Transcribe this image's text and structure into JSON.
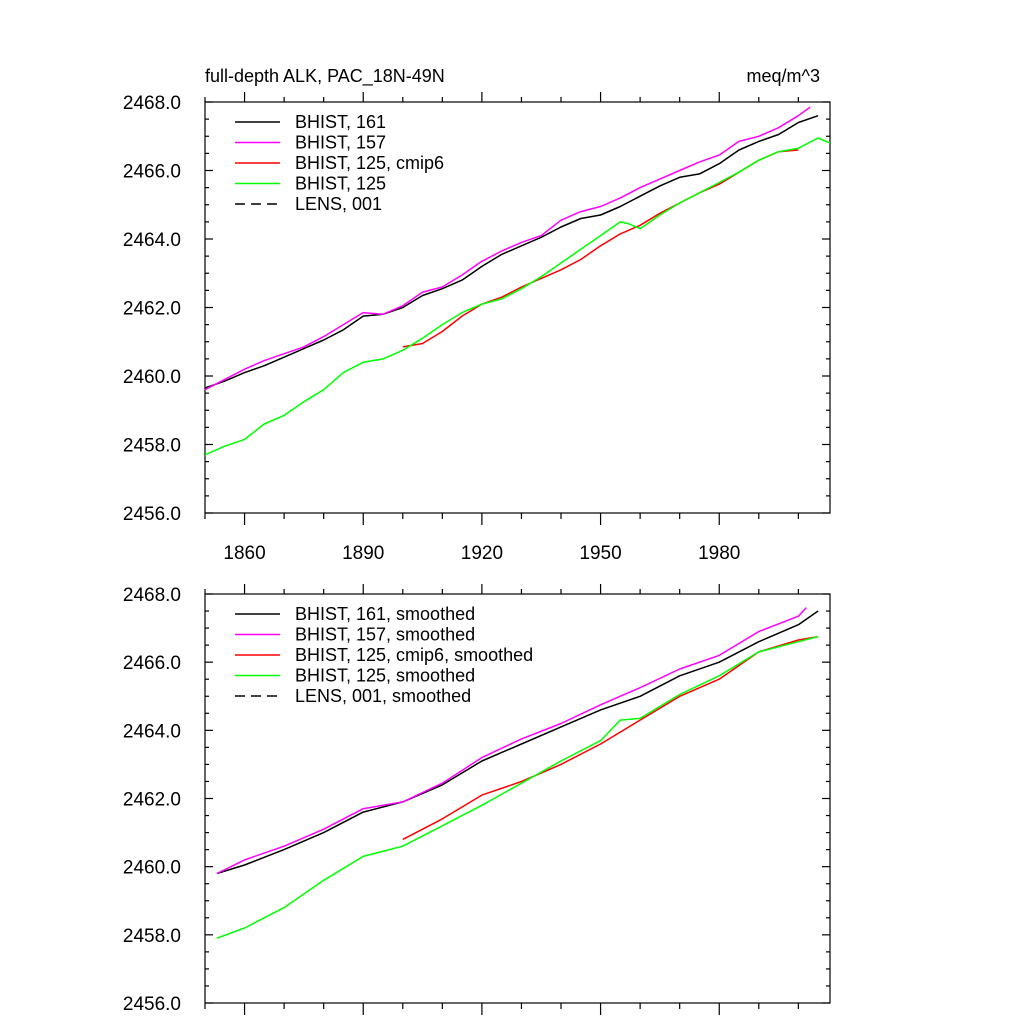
{
  "chart_data": [
    {
      "type": "line",
      "title": "full-depth ALK, PAC_18N-49N",
      "units": "meq/m^3",
      "xlim": [
        1850,
        2008
      ],
      "ylim": [
        2456,
        2468
      ],
      "yticks": [
        "2456.0",
        "2458.0",
        "2460.0",
        "2462.0",
        "2464.0",
        "2466.0",
        "2468.0"
      ],
      "xticks": [
        "1860",
        "1890",
        "1920",
        "1950",
        "1980"
      ],
      "show_xtick_labels": true,
      "legend": "top-left",
      "series": [
        {
          "name": "BHIST, 161",
          "color": "#000000",
          "dash": "solid",
          "x": [
            1850,
            1855,
            1860,
            1865,
            1870,
            1875,
            1880,
            1885,
            1890,
            1895,
            1900,
            1905,
            1910,
            1915,
            1920,
            1925,
            1930,
            1935,
            1940,
            1945,
            1950,
            1955,
            1960,
            1965,
            1970,
            1975,
            1980,
            1985,
            1990,
            1995,
            2000,
            2005
          ],
          "values": [
            2459.65,
            2459.85,
            2460.1,
            2460.3,
            2460.55,
            2460.8,
            2461.05,
            2461.35,
            2461.75,
            2461.8,
            2462.0,
            2462.35,
            2462.55,
            2462.8,
            2463.2,
            2463.55,
            2463.8,
            2464.05,
            2464.35,
            2464.6,
            2464.7,
            2464.95,
            2465.25,
            2465.55,
            2465.8,
            2465.9,
            2466.2,
            2466.6,
            2466.85,
            2467.05,
            2467.4,
            2467.6
          ]
        },
        {
          "name": "BHIST, 157",
          "color": "#ff00ff",
          "dash": "solid",
          "x": [
            1850,
            1855,
            1860,
            1865,
            1870,
            1875,
            1880,
            1885,
            1890,
            1895,
            1900,
            1905,
            1910,
            1915,
            1920,
            1925,
            1930,
            1935,
            1940,
            1945,
            1950,
            1955,
            1960,
            1965,
            1970,
            1975,
            1980,
            1985,
            1990,
            1995,
            2000,
            2003
          ],
          "values": [
            2459.6,
            2459.9,
            2460.2,
            2460.45,
            2460.65,
            2460.85,
            2461.15,
            2461.5,
            2461.85,
            2461.8,
            2462.05,
            2462.45,
            2462.6,
            2462.95,
            2463.35,
            2463.65,
            2463.9,
            2464.1,
            2464.55,
            2464.8,
            2464.95,
            2465.2,
            2465.5,
            2465.75,
            2466.0,
            2466.25,
            2466.45,
            2466.85,
            2467.0,
            2467.25,
            2467.6,
            2467.85
          ]
        },
        {
          "name": "BHIST, 125, cmip6",
          "color": "#ff0000",
          "dash": "solid",
          "x": [
            1900,
            1905,
            1910,
            1915,
            1920,
            1925,
            1930,
            1935,
            1940,
            1945,
            1950,
            1955,
            1960,
            1965,
            1970,
            1975,
            1980,
            1985,
            1990,
            1995,
            2000
          ],
          "values": [
            2460.85,
            2460.95,
            2461.3,
            2461.75,
            2462.1,
            2462.3,
            2462.6,
            2462.85,
            2463.1,
            2463.4,
            2463.8,
            2464.15,
            2464.4,
            2464.75,
            2465.05,
            2465.35,
            2465.6,
            2465.95,
            2466.3,
            2466.55,
            2466.6
          ]
        },
        {
          "name": "BHIST, 125",
          "color": "#00ff00",
          "dash": "solid",
          "x": [
            1850,
            1855,
            1860,
            1865,
            1870,
            1875,
            1880,
            1885,
            1890,
            1895,
            1900,
            1905,
            1910,
            1915,
            1920,
            1925,
            1930,
            1935,
            1940,
            1945,
            1950,
            1955,
            1957,
            1960,
            1965,
            1970,
            1975,
            1980,
            1985,
            1990,
            1995,
            2000,
            2005,
            2008
          ],
          "values": [
            2457.7,
            2457.95,
            2458.15,
            2458.6,
            2458.85,
            2459.25,
            2459.6,
            2460.1,
            2460.4,
            2460.5,
            2460.75,
            2461.1,
            2461.5,
            2461.85,
            2462.1,
            2462.25,
            2462.55,
            2462.9,
            2463.3,
            2463.7,
            2464.1,
            2464.5,
            2464.45,
            2464.3,
            2464.7,
            2465.05,
            2465.35,
            2465.65,
            2465.95,
            2466.3,
            2466.55,
            2466.65,
            2466.95,
            2466.8
          ]
        },
        {
          "name": "LENS, 001",
          "color": "#000000",
          "dash": "dashed",
          "x": [],
          "values": []
        }
      ]
    },
    {
      "type": "line",
      "xlim": [
        1850,
        2008
      ],
      "ylim": [
        2456,
        2468
      ],
      "yticks": [
        "2456.0",
        "2458.0",
        "2460.0",
        "2462.0",
        "2464.0",
        "2466.0",
        "2468.0"
      ],
      "xticks": [
        "1860",
        "1890",
        "1920",
        "1950",
        "1980"
      ],
      "show_xtick_labels": false,
      "legend": "top-left",
      "series": [
        {
          "name": "BHIST, 161, smoothed",
          "color": "#000000",
          "dash": "solid",
          "x": [
            1853,
            1860,
            1870,
            1880,
            1890,
            1900,
            1910,
            1920,
            1930,
            1940,
            1950,
            1960,
            1970,
            1980,
            1990,
            2000,
            2005
          ],
          "values": [
            2459.8,
            2460.05,
            2460.5,
            2461.0,
            2461.6,
            2461.9,
            2462.4,
            2463.1,
            2463.6,
            2464.1,
            2464.6,
            2465.0,
            2465.6,
            2466.0,
            2466.6,
            2467.1,
            2467.5
          ]
        },
        {
          "name": "BHIST, 157, smoothed",
          "color": "#ff00ff",
          "dash": "solid",
          "x": [
            1853,
            1860,
            1870,
            1880,
            1890,
            1900,
            1910,
            1920,
            1930,
            1940,
            1950,
            1960,
            1970,
            1980,
            1990,
            2000,
            2002
          ],
          "values": [
            2459.8,
            2460.2,
            2460.6,
            2461.1,
            2461.7,
            2461.9,
            2462.45,
            2463.2,
            2463.75,
            2464.2,
            2464.75,
            2465.25,
            2465.8,
            2466.2,
            2466.9,
            2467.35,
            2467.6
          ]
        },
        {
          "name": "BHIST, 125, cmip6, smoothed",
          "color": "#ff0000",
          "dash": "solid",
          "x": [
            1900,
            1910,
            1920,
            1930,
            1940,
            1950,
            1960,
            1970,
            1980,
            1990,
            2000,
            2005
          ],
          "values": [
            2460.8,
            2461.4,
            2462.1,
            2462.5,
            2463.0,
            2463.6,
            2464.3,
            2465.0,
            2465.5,
            2466.3,
            2466.65,
            2466.75
          ]
        },
        {
          "name": "BHIST, 125, smoothed",
          "color": "#00ff00",
          "dash": "solid",
          "x": [
            1853,
            1860,
            1870,
            1880,
            1890,
            1900,
            1910,
            1920,
            1930,
            1940,
            1950,
            1955,
            1960,
            1970,
            1980,
            1990,
            2000,
            2005
          ],
          "values": [
            2457.9,
            2458.2,
            2458.8,
            2459.6,
            2460.3,
            2460.6,
            2461.2,
            2461.8,
            2462.45,
            2463.1,
            2463.7,
            2464.3,
            2464.35,
            2465.05,
            2465.6,
            2466.3,
            2466.6,
            2466.75
          ]
        },
        {
          "name": "LENS, 001, smoothed",
          "color": "#000000",
          "dash": "dashed",
          "x": [],
          "values": []
        }
      ]
    }
  ]
}
